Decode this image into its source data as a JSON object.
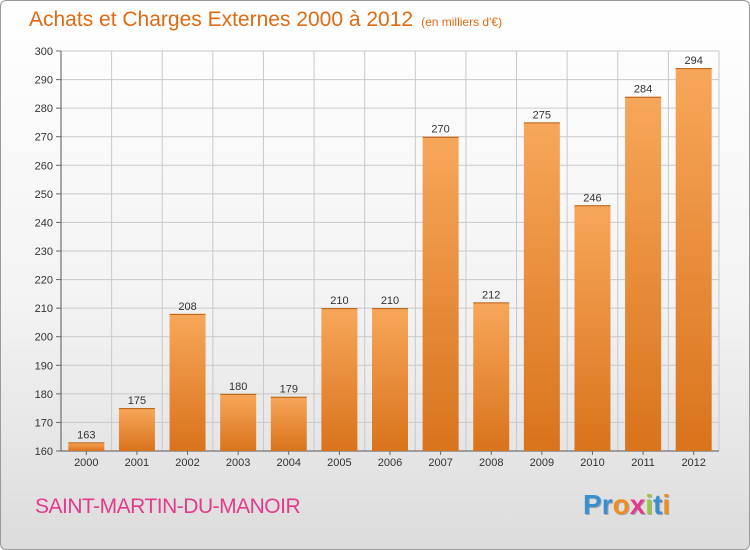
{
  "title": "Achats et Charges Externes 2000 à 2012",
  "subtitle": "(en milliers d'€)",
  "commune": "SAINT-MARTIN-DU-MANOIR",
  "brand": "Proxiti",
  "brand_letter_colors": [
    "#3a8fd0",
    "#3a8fd0",
    "#f28c1e",
    "#e53a8c",
    "#9bc53d",
    "#3a8fd0",
    "#f28c1e"
  ],
  "colors": {
    "title": "#e06a12",
    "commune": "#e53a8c",
    "bar_light": "#f7a75a",
    "bar_dark": "#d9731c",
    "grid": "#c9c9c9"
  },
  "chart_data": {
    "type": "bar",
    "title": "Achats et Charges Externes 2000 à 2012",
    "subtitle": "(en milliers d'€)",
    "xlabel": "",
    "ylabel": "",
    "categories": [
      "2000",
      "2001",
      "2002",
      "2003",
      "2004",
      "2005",
      "2006",
      "2007",
      "2008",
      "2009",
      "2010",
      "2011",
      "2012"
    ],
    "values": [
      163,
      175,
      208,
      180,
      179,
      210,
      210,
      270,
      212,
      275,
      246,
      284,
      294
    ],
    "ylim": [
      160,
      300
    ],
    "yticks": [
      160,
      170,
      180,
      190,
      200,
      210,
      220,
      230,
      240,
      250,
      260,
      270,
      280,
      290,
      300
    ],
    "grid": true,
    "legend": "none"
  }
}
